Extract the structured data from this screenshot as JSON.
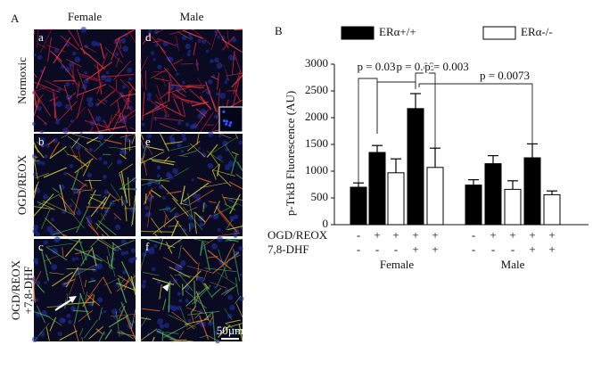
{
  "panel_a": {
    "label": "A",
    "columns": [
      "Female",
      "Male"
    ],
    "rows": [
      "Normoxic",
      "OGD/REOX",
      "OGD/REOX",
      "+7,8-DHF"
    ],
    "panels": [
      "a",
      "b",
      "c",
      "d",
      "e",
      "f"
    ],
    "scale_bar": "50µm"
  },
  "chart_data": {
    "type": "bar",
    "label": "B",
    "y_label": "p-TrkB Fluorescence (AU)",
    "ylim": [
      0,
      3000
    ],
    "yticks": [
      0,
      500,
      1000,
      1500,
      2000,
      2500,
      3000
    ],
    "series": [
      {
        "name": "ERα+/+",
        "color": "#000000",
        "values": [
          700,
          1350,
          null,
          2170,
          null,
          740,
          1140,
          null,
          1250,
          null
        ],
        "errors": [
          80,
          130,
          null,
          280,
          null,
          100,
          150,
          null,
          260,
          null
        ]
      },
      {
        "name": "ERα-/-",
        "color": "#ffffff",
        "values": [
          null,
          null,
          970,
          null,
          1070,
          null,
          null,
          660,
          null,
          560
        ],
        "errors": [
          null,
          null,
          260,
          null,
          360,
          null,
          null,
          160,
          null,
          70
        ]
      }
    ],
    "treatment_rows": [
      {
        "label": "OGD/REOX",
        "values": [
          "-",
          "+",
          "+",
          "+",
          "+",
          "-",
          "+",
          "+",
          "+",
          "+"
        ]
      },
      {
        "label": "7,8-DHF",
        "values": [
          "-",
          "-",
          "-",
          "+",
          "+",
          "-",
          "-",
          "-",
          "+",
          "+"
        ]
      }
    ],
    "groups": [
      "Female",
      "Male"
    ],
    "annotations": [
      "p = 0.03",
      "p = 0.03",
      "p = 0.003",
      "p = 0.0073"
    ]
  }
}
